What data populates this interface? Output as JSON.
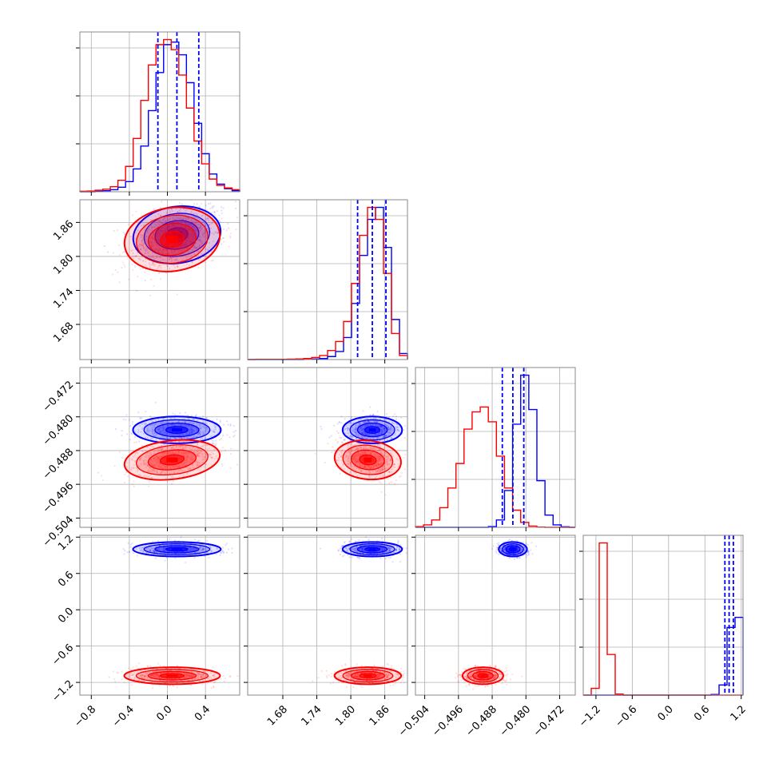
{
  "colors": {
    "series_a": "#0000ff",
    "series_b": "#ff0000",
    "grid": "#b0b0b0",
    "frame": "#888888"
  },
  "chart_data": {
    "type": "corner",
    "grid": true,
    "series": [
      {
        "name": "",
        "color": "#0000ff",
        "quantiles": [
          [
            -0.1,
            0.1,
            0.33
          ],
          [
            1.812,
            1.838,
            1.862
          ],
          [
            -0.4856,
            -0.4831,
            -0.4805
          ],
          [
            0.93,
            1.0,
            1.07
          ]
        ],
        "mean": [
          0.1,
          1.838,
          -0.4831,
          1.0
        ],
        "sd": [
          0.22,
          0.025,
          0.0016,
          0.06
        ],
        "corr": {
          "0-1": 0.35,
          "0-2": 0.0,
          "1-2": 0.0,
          "0-3": 0.0,
          "1-3": 0.0,
          "2-3": 0.0
        }
      },
      {
        "name": "",
        "color": "#ff0000",
        "mean": [
          0.05,
          1.83,
          -0.4902,
          -1.09
        ],
        "sd": [
          0.24,
          0.028,
          0.0023,
          0.07
        ],
        "corr": {
          "0-1": 0.35,
          "0-2": 0.45,
          "1-2": -0.3,
          "0-3": 0.0,
          "1-3": 0.0,
          "2-3": 0.0
        }
      }
    ],
    "parameters": [
      {
        "range": [
          -0.92,
          0.76
        ],
        "ticks": [
          "-0.8",
          "-0.4",
          "0.0",
          "0.4"
        ],
        "tick_values": [
          -0.8,
          -0.4,
          0.0,
          0.4
        ]
      },
      {
        "range": [
          1.618,
          1.9
        ],
        "ticks": [
          "1.68",
          "1.74",
          "1.80",
          "1.86"
        ],
        "tick_values": [
          1.68,
          1.74,
          1.8,
          1.86
        ]
      },
      {
        "range": [
          -0.5062,
          -0.4683
        ],
        "ticks": [
          "-0.504",
          "-0.496",
          "-0.488",
          "-0.480",
          "-0.472"
        ],
        "tick_values": [
          -0.504,
          -0.496,
          -0.488,
          -0.48,
          -0.472
        ]
      },
      {
        "range": [
          -1.41,
          1.23
        ],
        "ticks": [
          "-1.2",
          "-0.6",
          "0.0",
          "0.6",
          "1.2"
        ],
        "tick_values": [
          -1.2,
          -0.6,
          0.0,
          0.6,
          1.2
        ]
      }
    ],
    "histograms": [
      {
        "bin_edges": [
          -0.92,
          -0.84,
          -0.76,
          -0.68,
          -0.6,
          -0.52,
          -0.44,
          -0.36,
          -0.28,
          -0.2,
          -0.12,
          -0.04,
          0.04,
          0.12,
          0.2,
          0.28,
          0.36,
          0.44,
          0.52,
          0.6,
          0.68,
          0.76
        ],
        "series_a": [
          0,
          0,
          2,
          4,
          8,
          18,
          40,
          90,
          180,
          320,
          470,
          580,
          590,
          540,
          430,
          270,
          150,
          70,
          30,
          12,
          4
        ],
        "series_b": [
          2,
          3,
          6,
          10,
          20,
          45,
          100,
          210,
          360,
          500,
          580,
          600,
          560,
          460,
          330,
          200,
          110,
          50,
          25,
          15,
          8
        ]
      },
      {
        "bin_edges": [
          1.618,
          1.6321,
          1.6462,
          1.6603,
          1.6744,
          1.6885,
          1.7026,
          1.7167,
          1.7308,
          1.7449,
          1.759,
          1.7731,
          1.7872,
          1.8013,
          1.8154,
          1.8295,
          1.8436,
          1.8577,
          1.8718,
          1.8859,
          1.9
        ],
        "series_a": [
          0,
          0,
          0,
          0,
          0,
          0,
          0,
          1,
          2,
          5,
          15,
          40,
          110,
          280,
          520,
          700,
          760,
          560,
          200,
          30
        ],
        "series_b": [
          0,
          1,
          1,
          1,
          1,
          2,
          3,
          5,
          10,
          20,
          45,
          90,
          190,
          380,
          620,
          760,
          700,
          430,
          130,
          20
        ]
      },
      {
        "bin_edges": [
          -0.5062,
          -0.50428,
          -0.50236,
          -0.50044,
          -0.49852,
          -0.4966,
          -0.49468,
          -0.49276,
          -0.49084,
          -0.48892,
          -0.487,
          -0.48508,
          -0.48316,
          -0.48124,
          -0.47932,
          -0.4774,
          -0.47548,
          -0.47356,
          -0.47164,
          -0.46972,
          -0.4683
        ],
        "series_a": [
          0,
          0,
          0,
          0,
          0,
          0,
          0,
          0,
          0,
          3,
          30,
          150,
          420,
          620,
          480,
          190,
          50,
          10,
          2,
          0
        ],
        "series_b": [
          3,
          10,
          30,
          80,
          160,
          260,
          400,
          470,
          490,
          430,
          290,
          160,
          70,
          20,
          5,
          1,
          0,
          0,
          0,
          0
        ]
      },
      {
        "bin_edges": [
          -1.41,
          -1.278,
          -1.146,
          -1.014,
          -0.882,
          -0.75,
          -0.618,
          -0.486,
          -0.354,
          -0.222,
          -0.09,
          0.042,
          0.174,
          0.306,
          0.438,
          0.57,
          0.702,
          0.834,
          0.966,
          1.098,
          1.23
        ],
        "series_a": [
          0,
          0,
          0,
          0,
          0,
          0,
          0,
          0,
          0,
          0,
          0,
          0,
          0,
          0,
          0,
          0,
          2,
          30,
          200,
          230
        ],
        "series_b": [
          0,
          20,
          450,
          120,
          3,
          0,
          0,
          0,
          0,
          0,
          0,
          0,
          0,
          0,
          0,
          0,
          0,
          0,
          0,
          0
        ]
      }
    ]
  }
}
